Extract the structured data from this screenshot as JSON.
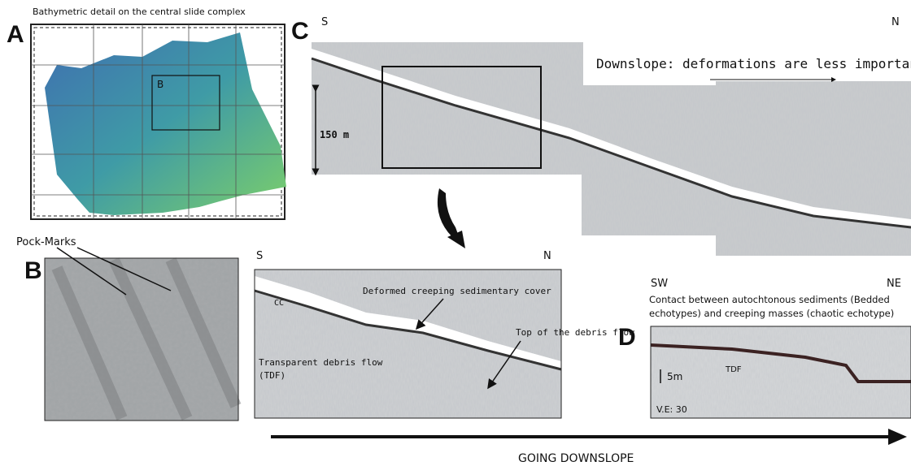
{
  "panels": {
    "a": {
      "label": "A",
      "title": "Bathymetric  detail  on the central slide complex",
      "inset_label": "B"
    },
    "b": {
      "label": "B",
      "annotation": "Pock-Marks"
    },
    "c": {
      "label": "C",
      "left_direction": "S",
      "right_direction": "N",
      "note": "Downslope: deformations are less important",
      "scale": "150 m"
    },
    "zoom": {
      "left_direction": "S",
      "right_direction": "N",
      "cc": "CC",
      "cover": "Deformed creeping sedimentary cover",
      "top": "Top of the debris flow",
      "debris_line1": "Transparent debris flow",
      "debris_line2": "(TDF)"
    },
    "d": {
      "label": "D",
      "left_direction": "SW",
      "right_direction": "NE",
      "caption_line1": "Contact between autochtonous sediments (Bedded",
      "caption_line2": "echotypes) and creeping masses (chaotic echotype)",
      "scale": "5m",
      "tdf": "TDF",
      "ve": "V.E: 30"
    }
  },
  "footer": {
    "arrow_label": "GOING DOWNSLOPE"
  }
}
